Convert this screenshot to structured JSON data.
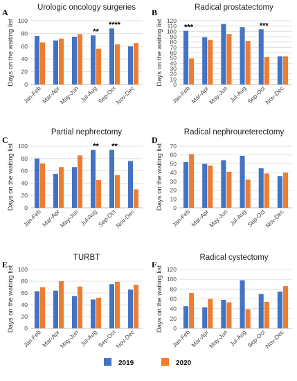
{
  "colors": {
    "2019": "#4472C4",
    "2020": "#ED7D31",
    "grid": "#d9d9d9",
    "axis": "#a6a6a6"
  },
  "legend": {
    "items": [
      {
        "label": "2019",
        "color": "#4472C4"
      },
      {
        "label": "2020",
        "color": "#ED7D31"
      }
    ]
  },
  "chart_data": [
    {
      "type": "bar",
      "panel_label": "A",
      "title": "Urologic oncology surgeries",
      "ylabel": "Days on the waiting list",
      "xlabel": "",
      "categories": [
        "Jan-Feb",
        "Mar-Apr",
        "May-Jun",
        "Jul-Aug",
        "Sep-Oct",
        "Nov-Dec"
      ],
      "ylim": [
        0,
        100
      ],
      "yticks": [
        0,
        20,
        40,
        60,
        80,
        100
      ],
      "grid": true,
      "series": [
        {
          "name": "2019",
          "values": [
            76,
            69,
            75,
            77,
            88,
            60
          ]
        },
        {
          "name": "2020",
          "values": [
            66,
            72,
            79,
            56,
            63,
            65
          ]
        }
      ],
      "annotations": [
        {
          "category": "Jul-Aug",
          "text": "**"
        },
        {
          "category": "Sep-Oct",
          "text": "****"
        }
      ]
    },
    {
      "type": "bar",
      "panel_label": "B",
      "title": "Radical prostatectomy",
      "ylabel": "Days on the waiting list",
      "xlabel": "",
      "categories": [
        "Jan-Feb",
        "Mar-Apr",
        "May-Jun",
        "Jul-Aug",
        "Sep-Oct",
        "Nov-Dec"
      ],
      "ylim": [
        0,
        120
      ],
      "yticks": [
        0,
        10,
        20,
        30,
        40,
        50,
        60,
        70,
        80,
        90,
        100,
        110,
        120
      ],
      "grid": true,
      "series": [
        {
          "name": "2019",
          "values": [
            101,
            89,
            114,
            108,
            104,
            53
          ]
        },
        {
          "name": "2020",
          "values": [
            49,
            84,
            95,
            82,
            52,
            53
          ]
        }
      ],
      "annotations": [
        {
          "category": "Jan-Feb",
          "text": "***"
        },
        {
          "category": "Sep-Oct",
          "text": "***"
        }
      ]
    },
    {
      "type": "bar",
      "panel_label": "C",
      "title": "Partial nephrectomy",
      "ylabel": "Days on the waiting list",
      "xlabel": "",
      "categories": [
        "Jan-Feb",
        "Mar-Apr",
        "May-Jun",
        "Jul-Aug",
        "Sep-Oct",
        "Nov-Dec"
      ],
      "ylim": [
        0,
        100
      ],
      "yticks": [
        0,
        20,
        40,
        60,
        80,
        100
      ],
      "grid": true,
      "series": [
        {
          "name": "2019",
          "values": [
            80,
            55,
            66,
            94,
            94,
            76
          ]
        },
        {
          "name": "2020",
          "values": [
            72,
            66,
            85,
            45,
            53,
            30
          ]
        }
      ],
      "annotations": [
        {
          "category": "Jul-Aug",
          "text": "**"
        },
        {
          "category": "Sep-Oct",
          "text": "**"
        }
      ]
    },
    {
      "type": "bar",
      "panel_label": "D",
      "title": "Radical nephroureterectomy",
      "ylabel": "Days on the waiting list",
      "xlabel": "",
      "categories": [
        "Jan-Feb",
        "Mar-Apr",
        "May-Jun",
        "Jul-Aug",
        "Sep-Oct",
        "Nov-Dec"
      ],
      "ylim": [
        0,
        70
      ],
      "yticks": [
        0,
        10,
        20,
        30,
        40,
        50,
        60,
        70
      ],
      "grid": true,
      "series": [
        {
          "name": "2019",
          "values": [
            52,
            50,
            54,
            59,
            45,
            36
          ]
        },
        {
          "name": "2020",
          "values": [
            61,
            48,
            41,
            32,
            39,
            40
          ]
        }
      ],
      "annotations": []
    },
    {
      "type": "bar",
      "panel_label": "E",
      "title": "TURBT",
      "ylabel": "Days on the waiting list",
      "xlabel": "",
      "categories": [
        "Jan-Feb",
        "Mar-Apr",
        "May-Jun",
        "Jul-Aug",
        "Sep-Oct",
        "Nov-Dec"
      ],
      "ylim": [
        0,
        100
      ],
      "yticks": [
        0,
        20,
        40,
        60,
        80,
        100
      ],
      "grid": true,
      "series": [
        {
          "name": "2019",
          "values": [
            63,
            64,
            55,
            49,
            75,
            66
          ]
        },
        {
          "name": "2020",
          "values": [
            70,
            80,
            71,
            52,
            79,
            74
          ]
        }
      ],
      "annotations": []
    },
    {
      "type": "bar",
      "panel_label": "F",
      "title": "Radical cystectomy",
      "ylabel": "Days on the waiting list",
      "xlabel": "",
      "categories": [
        "Jan-Feb",
        "Mar-Apr",
        "May-Jun",
        "Jul-Aug",
        "Sep-Oct",
        "Nov-Dec"
      ],
      "ylim": [
        0,
        120
      ],
      "yticks": [
        0,
        20,
        40,
        60,
        80,
        100,
        120
      ],
      "grid": true,
      "series": [
        {
          "name": "2019",
          "values": [
            45,
            43,
            58,
            98,
            70,
            75
          ]
        },
        {
          "name": "2020",
          "values": [
            72,
            60,
            53,
            39,
            54,
            86
          ]
        }
      ],
      "annotations": []
    }
  ]
}
